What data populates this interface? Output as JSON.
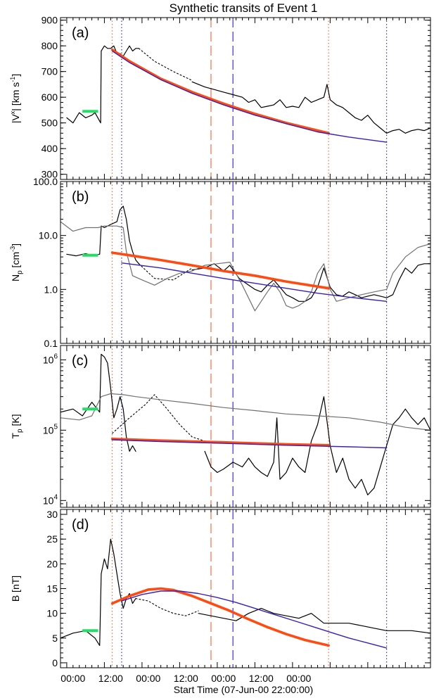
{
  "figure": {
    "title": "Synthetic transits of Event 1",
    "xlabel": "Start Time (07-Jun-00 22:00:00)",
    "x_tick_labels": [
      "00:00",
      "12:00",
      "00:00",
      "12:00",
      "00:00",
      "12:00",
      "00:00"
    ],
    "colors": {
      "observed": "#000000",
      "model_gray": "#707070",
      "orange_fit": "#ff4a12",
      "purple_fit": "#3a1fb8",
      "upstream_mark": "#22dd66",
      "orange_lines": "#ff6a3a",
      "purple_lines": "#3f2fc0"
    }
  },
  "chart_data": [
    {
      "type": "line",
      "panel_label": "(a)",
      "ylabel": "|V^x| [km s^-1]",
      "ylabel_parts": {
        "pre": "|V",
        "sup1": "x",
        "mid": "| [km s",
        "sup2": "-1",
        "post": "]"
      },
      "ylim": [
        280,
        910
      ],
      "scale": "linear",
      "ytick_values": [
        300,
        400,
        500,
        600,
        700,
        800,
        900
      ],
      "ytick_labels": [
        "300",
        "400",
        "500",
        "600",
        "700",
        "800",
        "900"
      ],
      "x_units": "hours since 07-Jun-00 22:00",
      "xlim": [
        -2,
        116
      ],
      "vertical_lines": {
        "orange_dotted": [
          14.5,
          83.5
        ],
        "purple_dotted": [
          17.5,
          102
        ],
        "orange_dashed": [
          46
        ],
        "purple_dashed": [
          53
        ]
      },
      "upstream_segment": {
        "x": [
          5,
          10
        ],
        "y": 545
      },
      "series": [
        {
          "style": "observed",
          "x": [
            0,
            2,
            4,
            6,
            8,
            9,
            10.8,
            11,
            12,
            13,
            14,
            15,
            16,
            17,
            18,
            19,
            20,
            21,
            22,
            23
          ],
          "y": [
            520,
            500,
            540,
            520,
            530,
            540,
            500,
            780,
            800,
            790,
            790,
            800,
            770,
            770,
            760,
            780,
            800,
            780,
            790,
            790
          ]
        },
        {
          "style": "dotted",
          "x": [
            23,
            28,
            34,
            40
          ],
          "y": [
            790,
            740,
            700,
            665
          ]
        },
        {
          "style": "observed",
          "x": [
            40,
            44,
            47,
            50,
            53,
            56,
            58,
            60,
            62,
            64,
            66,
            68,
            70,
            72,
            74,
            76,
            78,
            80,
            82,
            83,
            84,
            86,
            88,
            90,
            92,
            94,
            96,
            98,
            100,
            102,
            104,
            106,
            108,
            110,
            112,
            114,
            116
          ],
          "y": [
            660,
            640,
            630,
            620,
            610,
            600,
            580,
            590,
            560,
            565,
            570,
            590,
            560,
            565,
            560,
            600,
            580,
            590,
            600,
            650,
            590,
            570,
            560,
            540,
            520,
            510,
            530,
            500,
            480,
            460,
            470,
            475,
            460,
            470,
            475,
            470,
            480
          ]
        },
        {
          "style": "orange_fit",
          "x": [
            14.5,
            20,
            30,
            40,
            50,
            60,
            70,
            83.5
          ],
          "y": [
            785,
            740,
            672,
            620,
            575,
            535,
            500,
            460
          ]
        },
        {
          "style": "purple_fit",
          "x": [
            14.5,
            20,
            30,
            40,
            50,
            60,
            70,
            80,
            90,
            102
          ],
          "y": [
            780,
            735,
            668,
            615,
            570,
            530,
            497,
            465,
            445,
            425
          ]
        }
      ]
    },
    {
      "type": "line",
      "panel_label": "(b)",
      "ylabel": "N_p [cm^-3]",
      "ylabel_parts": {
        "pre": "N",
        "sub": "p",
        "mid": " [cm",
        "sup2": "-3",
        "post": "]"
      },
      "ylim": [
        0.1,
        100
      ],
      "scale": "log",
      "ytick_values": [
        0.1,
        1,
        10,
        100
      ],
      "ytick_labels": [
        "0.1",
        "1.0",
        "10.0",
        "100.0"
      ],
      "x_units": "hours since 07-Jun-00 22:00",
      "xlim": [
        -2,
        116
      ],
      "vertical_lines": {
        "orange_dotted": [
          14.5,
          83.5
        ],
        "purple_dotted": [
          17.5,
          102
        ],
        "orange_dashed": [
          46
        ],
        "purple_dashed": [
          53
        ]
      },
      "upstream_segment": {
        "x": [
          5,
          10
        ],
        "y": 4.3
      },
      "series": [
        {
          "style": "observed",
          "x": [
            0,
            3,
            6,
            8,
            10.5,
            11,
            12,
            14,
            16,
            17,
            18,
            19,
            20,
            21,
            22,
            23
          ],
          "y": [
            4.5,
            4.2,
            4.6,
            4.3,
            4.5,
            15,
            14,
            16,
            18,
            30,
            35,
            20,
            8,
            5,
            3.5,
            3
          ]
        },
        {
          "style": "dotted",
          "x": [
            23,
            28,
            34,
            40
          ],
          "y": [
            3,
            1.6,
            1.5,
            2.5
          ]
        },
        {
          "style": "observed",
          "x": [
            40,
            44,
            47,
            50,
            52,
            55,
            58,
            60,
            62,
            64,
            66,
            68,
            70,
            72,
            74,
            76,
            78,
            80,
            82,
            84,
            86,
            88,
            90,
            92,
            94,
            96,
            98,
            100,
            102,
            104,
            106,
            108,
            110,
            112,
            114,
            116
          ],
          "y": [
            2.3,
            2.5,
            3,
            2.2,
            2.8,
            1.6,
            1.2,
            1,
            0.9,
            1.2,
            1.5,
            1.1,
            0.8,
            0.7,
            0.6,
            0.6,
            0.7,
            1.1,
            2.5,
            1.1,
            0.8,
            0.75,
            0.9,
            0.8,
            0.7,
            0.75,
            0.8,
            0.75,
            0.7,
            0.8,
            1.5,
            2.5,
            2,
            2.8,
            3,
            3
          ]
        },
        {
          "style": "model_gray",
          "x": [
            -2,
            2,
            6,
            10,
            12,
            16,
            18,
            19,
            21,
            24,
            28,
            32,
            36,
            40,
            44,
            48,
            52,
            56,
            60,
            62,
            64,
            66,
            68,
            70,
            72,
            74,
            76,
            78,
            80,
            82,
            84,
            86,
            90,
            94,
            98,
            102,
            104,
            108,
            112,
            116
          ],
          "y": [
            18,
            12,
            14,
            14,
            15,
            15,
            14,
            5,
            1.8,
            1.5,
            1.2,
            1.6,
            2,
            2.2,
            2.8,
            3,
            3.2,
            1.2,
            0.4,
            0.6,
            0.9,
            1.3,
            0.9,
            0.5,
            0.45,
            0.5,
            0.6,
            0.9,
            2,
            3,
            1,
            0.6,
            0.7,
            0.8,
            0.9,
            1,
            2,
            4,
            6,
            7
          ]
        },
        {
          "style": "orange_fit",
          "x": [
            14.5,
            20,
            30,
            40,
            50,
            60,
            70,
            83.5
          ],
          "y": [
            4.8,
            4.3,
            3.5,
            2.8,
            2.2,
            1.8,
            1.4,
            1.05
          ]
        },
        {
          "style": "purple_fit",
          "x": [
            17.5,
            30,
            40,
            50,
            60,
            70,
            80,
            90,
            102
          ],
          "y": [
            3.1,
            2.5,
            2,
            1.6,
            1.3,
            1.05,
            0.85,
            0.72,
            0.6
          ]
        }
      ]
    },
    {
      "type": "line",
      "panel_label": "(c)",
      "ylabel": "T_p [K]",
      "ylabel_parts": {
        "pre": "T",
        "sub": "p",
        "mid": " [K]"
      },
      "ylim": [
        8000,
        1600000
      ],
      "scale": "log",
      "ytick_values": [
        10000,
        100000,
        1000000
      ],
      "ytick_labels": [
        {
          "base": "10",
          "exp": "4"
        },
        {
          "base": "10",
          "exp": "5"
        },
        {
          "base": "10",
          "exp": "6"
        }
      ],
      "x_units": "hours since 07-Jun-00 22:00",
      "xlim": [
        -2,
        116
      ],
      "vertical_lines": {
        "orange_dotted": [
          14.5,
          83.5
        ],
        "purple_dotted": [
          17.5,
          102
        ],
        "orange_dashed": [
          46
        ],
        "purple_dashed": [
          53
        ]
      },
      "upstream_segment": {
        "x": [
          5,
          10
        ],
        "y": 200000
      },
      "series": [
        {
          "style": "observed",
          "x": [
            -2,
            2,
            5,
            8,
            10.5,
            11,
            12,
            13,
            14,
            15,
            16,
            17,
            18,
            19,
            20,
            21,
            22
          ],
          "y": [
            180000,
            200000,
            160000,
            250000,
            180000,
            1200000,
            1100000,
            900000,
            400000,
            150000,
            200000,
            300000,
            200000,
            80000,
            50000,
            60000,
            50000
          ]
        },
        {
          "style": "dotted",
          "x": [
            14.5,
            20,
            25,
            28,
            32,
            36,
            40,
            44
          ],
          "y": [
            90000,
            150000,
            230000,
            320000,
            200000,
            120000,
            80000,
            70000
          ]
        },
        {
          "style": "observed",
          "x": [
            44,
            46,
            48,
            50,
            53,
            56,
            58,
            60,
            62,
            64,
            66,
            67,
            68,
            70,
            72,
            74,
            76,
            78,
            80,
            82,
            84,
            86,
            88,
            90,
            92,
            94,
            96,
            98,
            100,
            102,
            104,
            106,
            108,
            110,
            112,
            114,
            116
          ],
          "y": [
            50000,
            30000,
            25000,
            28000,
            35000,
            30000,
            40000,
            30000,
            25000,
            22000,
            35000,
            150000,
            20000,
            25000,
            40000,
            30000,
            25000,
            70000,
            120000,
            300000,
            60000,
            25000,
            40000,
            20000,
            15000,
            20000,
            12000,
            15000,
            30000,
            60000,
            120000,
            150000,
            200000,
            150000,
            120000,
            150000,
            100000
          ]
        },
        {
          "style": "model_gray",
          "x": [
            -2,
            4,
            8,
            11,
            14,
            18,
            22,
            30,
            40,
            50,
            60,
            70,
            80,
            90,
            100,
            108,
            116
          ],
          "y": [
            150000,
            140000,
            160000,
            300000,
            330000,
            320000,
            300000,
            270000,
            240000,
            210000,
            190000,
            170000,
            160000,
            150000,
            130000,
            110000,
            100000
          ]
        },
        {
          "style": "orange_fit",
          "x": [
            14.5,
            30,
            50,
            70,
            83.5
          ],
          "y": [
            75000,
            71000,
            67000,
            63000,
            61000
          ]
        },
        {
          "style": "purple_fit",
          "x": [
            14.5,
            30,
            50,
            70,
            90,
            102
          ],
          "y": [
            73000,
            69000,
            65000,
            61000,
            58000,
            56000
          ]
        }
      ]
    },
    {
      "type": "line",
      "panel_label": "(d)",
      "ylabel": "B [nT]",
      "ylim": [
        -1,
        31
      ],
      "scale": "linear",
      "ytick_values": [
        0,
        5,
        10,
        15,
        20,
        25,
        30
      ],
      "ytick_labels": [
        "0",
        "5",
        "10",
        "15",
        "20",
        "25",
        "30"
      ],
      "x_units": "hours since 07-Jun-00 22:00",
      "xlim": [
        -2,
        116
      ],
      "vertical_lines": {
        "orange_dotted": [
          14.5,
          83.5
        ],
        "purple_dotted": [
          17.5,
          102
        ],
        "orange_dashed": [
          46
        ],
        "purple_dashed": [
          53
        ]
      },
      "upstream_segment": {
        "x": [
          5,
          10
        ],
        "y": 6.5
      },
      "series": [
        {
          "style": "observed",
          "x": [
            -2,
            2,
            6,
            9,
            10.5,
            11,
            12,
            13,
            14,
            15,
            16,
            17,
            18,
            19,
            20,
            21,
            22
          ],
          "y": [
            5,
            6,
            6.5,
            5,
            3.5,
            18,
            21,
            19,
            25,
            22,
            18,
            14,
            11,
            13,
            14,
            12,
            13
          ]
        },
        {
          "style": "dotted",
          "x": [
            22,
            26,
            30,
            34,
            38,
            42
          ],
          "y": [
            13,
            12.5,
            11,
            10,
            9.5,
            10.5
          ]
        },
        {
          "style": "observed",
          "x": [
            42,
            46,
            50,
            54,
            58,
            62,
            66,
            70,
            74,
            78,
            82,
            86,
            90,
            94,
            98,
            102,
            106,
            110,
            116
          ],
          "y": [
            10,
            9.5,
            9,
            8.5,
            10,
            11,
            10,
            9.5,
            9,
            10,
            8,
            8,
            8,
            7.5,
            7,
            6.5,
            6.5,
            6.5,
            6
          ]
        },
        {
          "style": "orange_fit",
          "x": [
            14.5,
            20,
            26,
            30,
            34,
            40,
            46,
            52,
            58,
            64,
            70,
            76,
            83.5
          ],
          "y": [
            12,
            13.5,
            14.8,
            15,
            14.7,
            13.5,
            12,
            10.5,
            8.8,
            7.2,
            5.8,
            4.6,
            3.5
          ]
        },
        {
          "style": "purple_fit",
          "x": [
            17.5,
            24,
            30,
            36,
            42,
            48,
            54,
            60,
            66,
            72,
            78,
            84,
            90,
            96,
            102
          ],
          "y": [
            12.5,
            13.8,
            14.5,
            14.5,
            14,
            13.2,
            12.2,
            11,
            9.8,
            8.6,
            7.4,
            6.2,
            5,
            4,
            3
          ]
        }
      ]
    }
  ]
}
